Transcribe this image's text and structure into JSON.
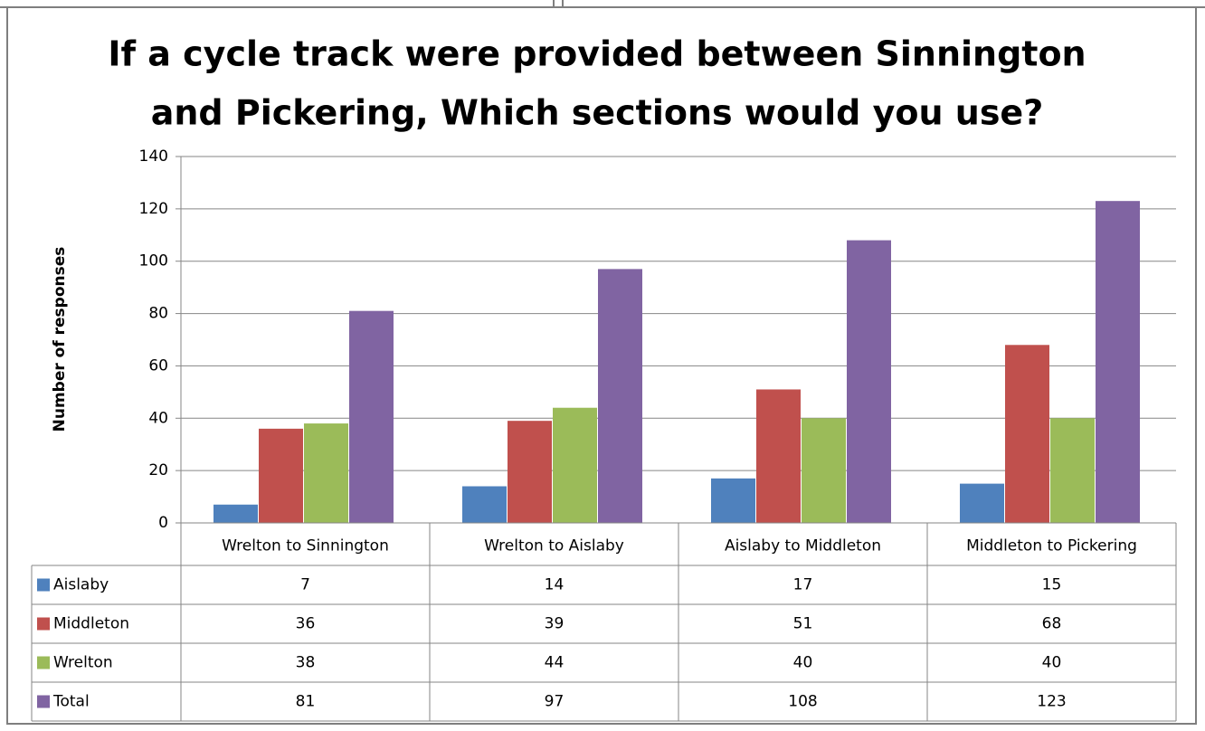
{
  "chart_data": {
    "type": "bar",
    "title": [
      "If a cycle track were provided between Sinnington",
      "and Pickering, Which sections would you use?"
    ],
    "y_label": "Number of responses",
    "categories": [
      "Wrelton to Sinnington",
      "Wrelton to Aislaby",
      "Aislaby to Middleton",
      "Middleton to Pickering"
    ],
    "series": [
      {
        "name": "Aislaby",
        "color": "#4f81bd",
        "values": [
          7,
          14,
          17,
          15
        ]
      },
      {
        "name": "Middleton",
        "color": "#c0504d",
        "values": [
          36,
          39,
          51,
          68
        ]
      },
      {
        "name": "Wrelton",
        "color": "#9bbb59",
        "values": [
          38,
          44,
          40,
          40
        ]
      },
      {
        "name": "Total",
        "color": "#8064a2",
        "values": [
          81,
          97,
          108,
          123
        ]
      }
    ],
    "ylim": [
      0,
      140
    ],
    "yticks": [
      0,
      20,
      40,
      60,
      80,
      100,
      120,
      140
    ],
    "grid": true
  }
}
